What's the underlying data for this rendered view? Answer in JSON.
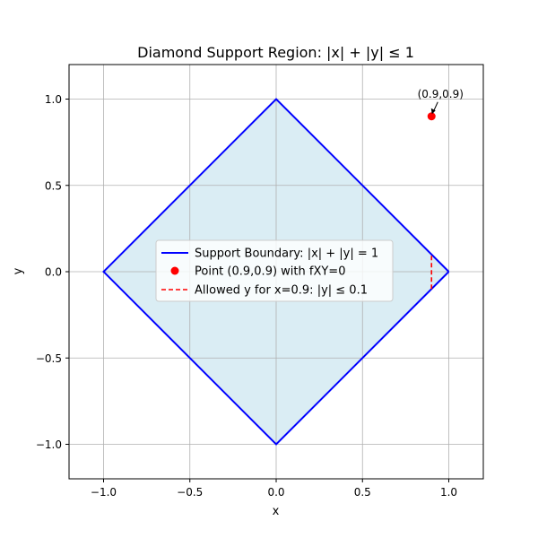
{
  "chart_data": {
    "type": "line",
    "title": "Diamond Support Region: |x| + |y| ≤ 1",
    "xlabel": "x",
    "ylabel": "y",
    "xlim": [
      -1.2,
      1.2
    ],
    "ylim": [
      -1.2,
      1.2
    ],
    "xticks": [
      -1.0,
      -0.5,
      0.0,
      0.5,
      1.0
    ],
    "yticks": [
      -1.0,
      -0.5,
      0.0,
      0.5,
      1.0
    ],
    "xtick_labels": [
      "−1.0",
      "−0.5",
      "0.0",
      "0.5",
      "1.0"
    ],
    "ytick_labels": [
      "−1.0",
      "−0.5",
      "0.0",
      "0.5",
      "1.0"
    ],
    "grid": true,
    "legend_position": "center-right",
    "series": [
      {
        "name": "Support Boundary: |x| + |y| = 1",
        "kind": "line",
        "color": "#0000ff",
        "fill": "#add8e6",
        "x": [
          1,
          0,
          -1,
          0,
          1
        ],
        "y": [
          0,
          1,
          0,
          -1,
          0
        ]
      },
      {
        "name": "Point (0.9,0.9) with fXY=0",
        "kind": "point",
        "color": "#ff0000",
        "x": [
          0.9
        ],
        "y": [
          0.9
        ]
      },
      {
        "name": "Allowed y for x=0.9: |y| ≤ 0.1",
        "kind": "dashed",
        "color": "#ff0000",
        "x": [
          0.9,
          0.9
        ],
        "y": [
          -0.1,
          0.1
        ]
      }
    ],
    "annotations": [
      {
        "text": "(0.9,0.9)",
        "x": 0.9,
        "y": 0.9
      }
    ]
  }
}
